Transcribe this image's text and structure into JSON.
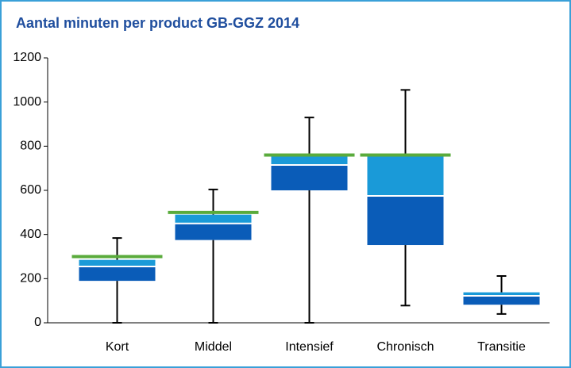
{
  "chart_data": {
    "type": "box",
    "title": "Aantal minuten per product GB-GGZ 2014",
    "categories": [
      "Kort",
      "Middel",
      "Intensief",
      "Chronisch",
      "Transitie"
    ],
    "whisker_low": [
      0,
      0,
      0,
      78,
      40
    ],
    "q1": [
      190,
      375,
      600,
      352,
      82
    ],
    "median": [
      255,
      450,
      715,
      575,
      122
    ],
    "q3": [
      285,
      490,
      760,
      755,
      138
    ],
    "whisker_high": [
      384,
      604,
      930,
      1055,
      212
    ],
    "norm": [
      300,
      500,
      760,
      760,
      null
    ],
    "colors": {
      "lower": "#0a5cb8",
      "upper": "#1a9ad8",
      "median": "#ffffff",
      "norm": "#5aab3c",
      "whisker": "#000000"
    },
    "ylim": [
      0,
      1200
    ],
    "yticks": [
      0,
      200,
      400,
      600,
      800,
      1000,
      1200
    ]
  }
}
